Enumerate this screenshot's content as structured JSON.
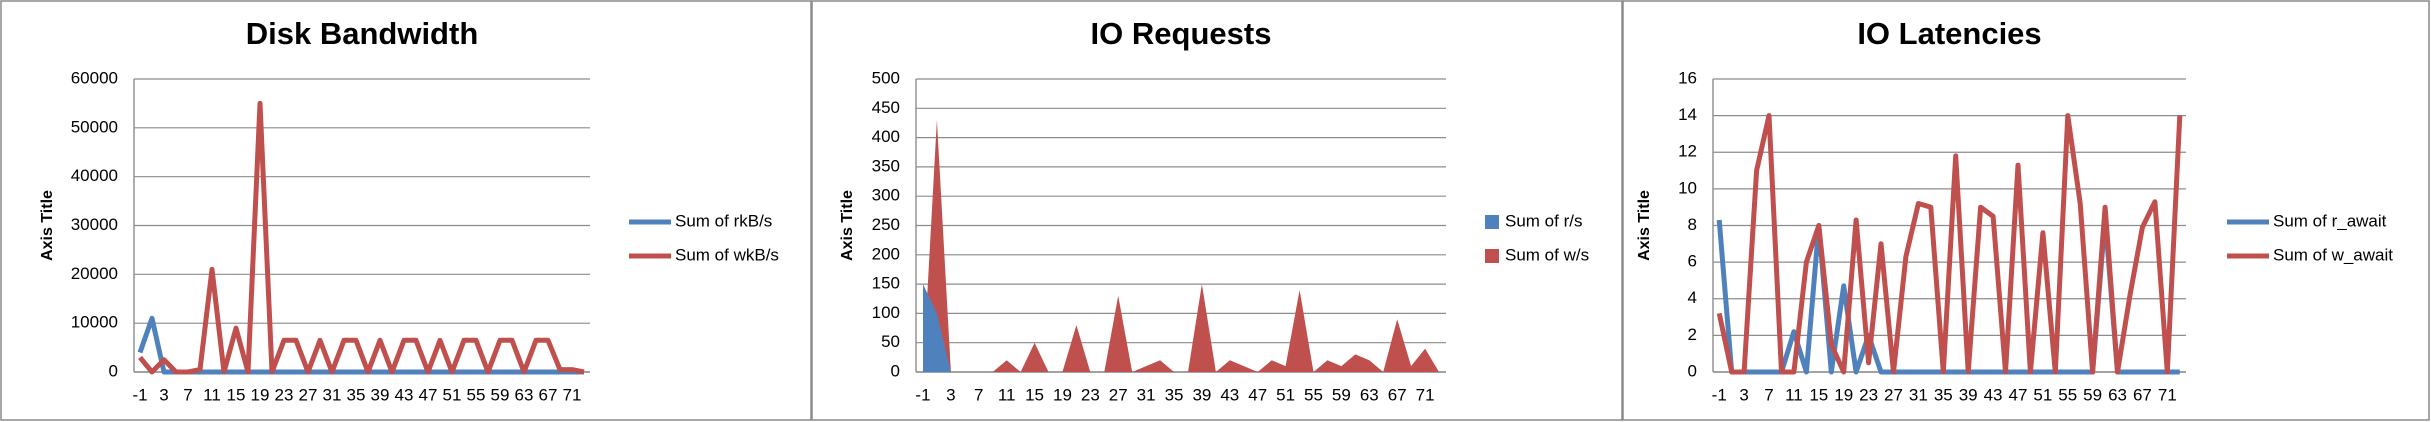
{
  "chart_data": [
    {
      "type": "line",
      "title": "Disk Bandwidth",
      "y_label": "Axis Title",
      "categories": [
        "-1",
        null,
        "3",
        null,
        "7",
        null,
        "11",
        null,
        "15",
        null,
        "19",
        null,
        "23",
        null,
        "27",
        null,
        "31",
        null,
        "35",
        null,
        "39",
        null,
        "43",
        null,
        "47",
        null,
        "51",
        null,
        "55",
        null,
        "59",
        null,
        "63",
        null,
        "67",
        null,
        "71",
        null
      ],
      "series": [
        {
          "name": "Sum of rkB/s",
          "color": "#4f81bd",
          "values": [
            4000,
            11000,
            0,
            0,
            0,
            0,
            0,
            0,
            0,
            0,
            0,
            0,
            0,
            0,
            0,
            0,
            0,
            0,
            0,
            0,
            0,
            0,
            0,
            0,
            0,
            0,
            0,
            0,
            0,
            0,
            0,
            0,
            0,
            0,
            0,
            0,
            0,
            0
          ]
        },
        {
          "name": "Sum of wkB/s",
          "color": "#c0504d",
          "values": [
            3000,
            0,
            2500,
            0,
            0,
            500,
            21000,
            0,
            9000,
            0,
            55000,
            0,
            6500,
            6500,
            0,
            6500,
            0,
            6500,
            6500,
            0,
            6500,
            0,
            6500,
            6500,
            0,
            6500,
            0,
            6500,
            6500,
            0,
            6500,
            6500,
            0,
            6500,
            6500,
            500,
            500,
            0
          ]
        }
      ],
      "ylim": [
        0,
        60000
      ],
      "yticks": [
        0,
        10000,
        20000,
        30000,
        40000,
        50000,
        60000
      ],
      "grid": true,
      "legend": "right"
    },
    {
      "type": "area",
      "title": "IO Requests",
      "y_label": "Axis Title",
      "categories": [
        "-1",
        null,
        "3",
        null,
        "7",
        null,
        "11",
        null,
        "15",
        null,
        "19",
        null,
        "23",
        null,
        "27",
        null,
        "31",
        null,
        "35",
        null,
        "39",
        null,
        "43",
        null,
        "47",
        null,
        "51",
        null,
        "55",
        null,
        "59",
        null,
        "63",
        null,
        "67",
        null,
        "71",
        null
      ],
      "series": [
        {
          "name": "Sum of r/s",
          "color": "#4f81bd",
          "values": [
            150,
            100,
            0,
            0,
            0,
            0,
            0,
            0,
            0,
            0,
            0,
            0,
            0,
            0,
            0,
            0,
            0,
            0,
            0,
            0,
            0,
            0,
            0,
            0,
            0,
            0,
            0,
            0,
            0,
            0,
            0,
            0,
            0,
            0,
            0,
            0,
            0,
            0
          ]
        },
        {
          "name": "Sum of w/s",
          "color": "#c0504d",
          "values": [
            0,
            430,
            0,
            0,
            0,
            0,
            20,
            0,
            50,
            0,
            0,
            80,
            0,
            0,
            130,
            0,
            10,
            20,
            0,
            0,
            150,
            0,
            20,
            10,
            0,
            20,
            10,
            140,
            0,
            20,
            10,
            30,
            20,
            0,
            90,
            10,
            40,
            0
          ]
        }
      ],
      "ylim": [
        0,
        500
      ],
      "yticks": [
        0,
        50,
        100,
        150,
        200,
        250,
        300,
        350,
        400,
        450,
        500
      ],
      "grid": true,
      "legend": "right"
    },
    {
      "type": "line",
      "title": "IO Latencies",
      "y_label": "Axis Title",
      "categories": [
        "-1",
        null,
        "3",
        null,
        "7",
        null,
        "11",
        null,
        "15",
        null,
        "19",
        null,
        "23",
        null,
        "27",
        null,
        "31",
        null,
        "35",
        null,
        "39",
        null,
        "43",
        null,
        "47",
        null,
        "51",
        null,
        "55",
        null,
        "59",
        null,
        "63",
        null,
        "67",
        null,
        "71",
        null
      ],
      "series": [
        {
          "name": "Sum of r_await",
          "color": "#4f81bd",
          "values": [
            8.3,
            0,
            0,
            0,
            0,
            0,
            2.2,
            0,
            8,
            0,
            4.7,
            0,
            2,
            0,
            0,
            0,
            0,
            0,
            0,
            0,
            0,
            0,
            0,
            0,
            0,
            0,
            0,
            0,
            0,
            0,
            0,
            8.4,
            0,
            0,
            0,
            0,
            0,
            0
          ]
        },
        {
          "name": "Sum of w_await",
          "color": "#c0504d",
          "values": [
            3.2,
            0,
            0,
            11,
            14,
            0,
            0,
            6,
            8,
            1.5,
            0,
            8.3,
            0.5,
            7,
            0,
            6.3,
            9.2,
            9,
            0,
            11.8,
            0,
            9,
            8.5,
            0,
            11.3,
            0,
            7.6,
            0,
            14,
            9.2,
            0,
            9,
            0,
            4.2,
            7.9,
            9.3,
            0,
            14
          ]
        }
      ],
      "ylim": [
        0,
        16
      ],
      "yticks": [
        0,
        2,
        4,
        6,
        8,
        10,
        12,
        14,
        16
      ],
      "grid": true,
      "legend": "right"
    }
  ]
}
